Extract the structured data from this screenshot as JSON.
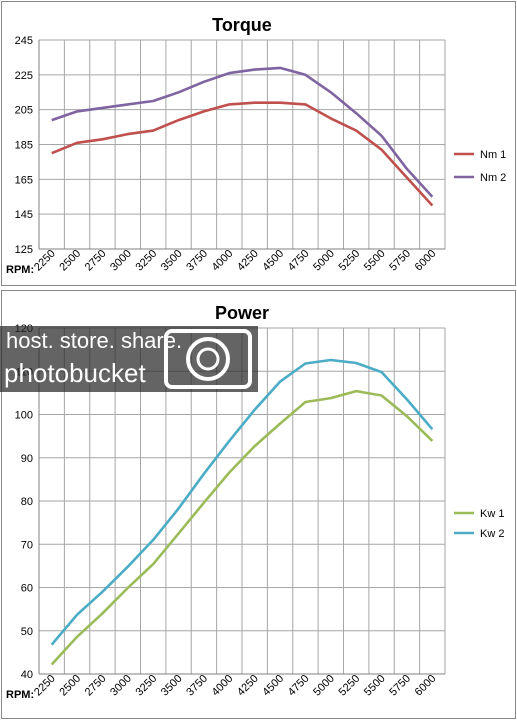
{
  "chart_data": [
    {
      "type": "line",
      "title": "Torque",
      "xlabel": "RPM:",
      "categories": [
        "2250",
        "2500",
        "2750",
        "3000",
        "3250",
        "3500",
        "3750",
        "4000",
        "4250",
        "4500",
        "4750",
        "5000",
        "5250",
        "5500",
        "5750",
        "6000"
      ],
      "ylim": [
        125,
        245
      ],
      "yticks": [
        125,
        145,
        165,
        185,
        205,
        225,
        245
      ],
      "grid": true,
      "legend": "right",
      "series": [
        {
          "name": "Nm 1",
          "color": "#c0504d",
          "values": [
            180,
            186,
            188,
            191,
            193,
            199,
            204,
            208,
            209,
            209,
            208,
            200,
            193,
            182,
            166,
            150
          ]
        },
        {
          "name": "Nm 2",
          "color": "#8064a2",
          "values": [
            199,
            204,
            206,
            208,
            210,
            215,
            221,
            226,
            228,
            229,
            225,
            215,
            203,
            190,
            171,
            155
          ]
        }
      ]
    },
    {
      "type": "line",
      "title": "Power",
      "xlabel": "RPM:",
      "categories": [
        "2250",
        "2500",
        "2750",
        "3000",
        "3250",
        "3500",
        "3750",
        "4000",
        "4250",
        "4500",
        "4750",
        "5000",
        "5250",
        "5500",
        "5750",
        "6000"
      ],
      "ylim": [
        40,
        120
      ],
      "yticks": [
        40,
        50,
        60,
        70,
        80,
        90,
        100,
        110,
        120
      ],
      "grid": true,
      "legend": "right",
      "series": [
        {
          "name": "Kw 1",
          "color": "#9bbb59",
          "values": [
            42.2,
            48.6,
            54.0,
            59.9,
            65.4,
            72.5,
            79.6,
            86.6,
            92.7,
            97.9,
            102.9,
            103.8,
            105.4,
            104.4,
            99.6,
            93.9
          ]
        },
        {
          "name": "Kw 2",
          "color": "#4bacc6",
          "values": [
            46.8,
            53.7,
            59.0,
            64.8,
            71.0,
            78.3,
            86.3,
            93.9,
            101.1,
            107.6,
            111.8,
            112.6,
            111.9,
            109.8,
            103.5,
            96.6
          ]
        }
      ]
    }
  ],
  "watermark": {
    "line1": "host. store. share.",
    "line2": "photobucket"
  }
}
